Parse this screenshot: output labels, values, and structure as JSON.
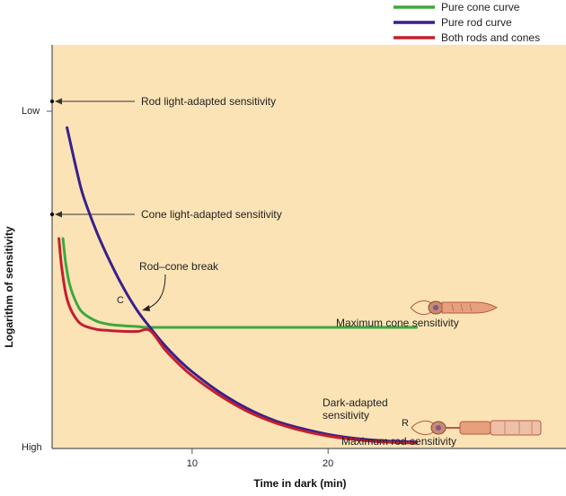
{
  "chart_data": {
    "type": "line",
    "xlabel": "Time in dark (min)",
    "ylabel": "Logarithm of sensitivity",
    "xlim": [
      -0.3,
      37.5
    ],
    "ylim": [
      0,
      10
    ],
    "x_ticks": [
      10,
      20
    ],
    "y_tick_labels": {
      "low": "Low",
      "high": "High"
    },
    "legend": [
      {
        "name": "Pure cone curve",
        "color": "#3ea83e"
      },
      {
        "name": "Pure rod curve",
        "color": "#3a1f8c"
      },
      {
        "name": "Both rods and cones",
        "color": "#c41f2b"
      }
    ],
    "series": [
      {
        "name": "Pure cone curve",
        "color": "#3ea83e",
        "x": [
          0.5,
          0.7,
          1.0,
          1.5,
          2,
          3,
          4,
          5,
          6,
          6.9,
          10,
          15,
          20,
          26.5
        ],
        "y": [
          5.2,
          4.6,
          4.05,
          3.6,
          3.35,
          3.15,
          3.07,
          3.04,
          3.02,
          3.0,
          3.0,
          3.0,
          3.0,
          3.0
        ]
      },
      {
        "name": "Pure rod curve",
        "color": "#3a1f8c",
        "x": [
          0.8,
          1.5,
          2,
          3,
          4,
          5,
          6,
          6.9,
          8,
          9,
          10,
          12,
          14,
          16,
          18,
          20,
          22,
          24,
          26.5
        ],
        "y": [
          7.95,
          6.9,
          6.25,
          5.35,
          4.6,
          3.95,
          3.4,
          3.0,
          2.55,
          2.2,
          1.9,
          1.4,
          1.0,
          0.7,
          0.5,
          0.35,
          0.25,
          0.19,
          0.16
        ]
      },
      {
        "name": "Both rods and cones",
        "color": "#c41f2b",
        "x": [
          0.2,
          0.4,
          0.7,
          1.0,
          1.5,
          2,
          3,
          4,
          5,
          6,
          6.9,
          8,
          9,
          10,
          12,
          14,
          16,
          18,
          20,
          22,
          24,
          26.5
        ],
        "y": [
          5.2,
          4.5,
          3.85,
          3.5,
          3.2,
          3.05,
          2.95,
          2.92,
          2.9,
          2.9,
          2.92,
          2.45,
          2.1,
          1.8,
          1.32,
          0.93,
          0.65,
          0.45,
          0.31,
          0.22,
          0.16,
          0.13
        ]
      }
    ],
    "markers": [
      {
        "label": "Rod light-adapted sensitivity",
        "y": 8.6
      },
      {
        "label": "Cone light-adapted sensitivity",
        "y": 5.8
      }
    ],
    "annotations": {
      "break_label": "Rod–cone break",
      "cone_point": "C",
      "rod_point": "R",
      "max_cone": "Maximum cone sensitivity",
      "dark_adapted_line1": "Dark-adapted",
      "dark_adapted_line2": "sensitivity",
      "max_rod": "Maximum rod sensitivity"
    }
  }
}
